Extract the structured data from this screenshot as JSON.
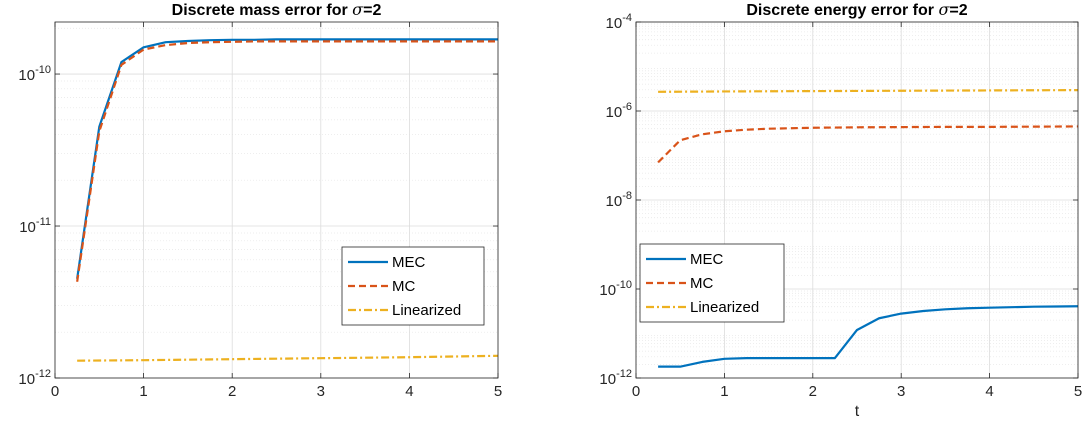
{
  "colors": {
    "MEC": "#0072BD",
    "MC": "#D95319",
    "Linearized": "#EDB120"
  },
  "chart_data": [
    {
      "type": "line",
      "title_prefix": "Discrete mass error for ",
      "title_symbol": "σ",
      "title_suffix": "=2",
      "xlabel": "",
      "ylabel": "",
      "yscale": "log",
      "xlim": [
        0,
        5
      ],
      "ylim": [
        1e-12,
        2.2e-10
      ],
      "grid": true,
      "minor_grid": true,
      "legend_position": "bottom-right",
      "xticks": [
        0,
        1,
        2,
        3,
        4,
        5
      ],
      "xtick_labels": [
        "0",
        "1",
        "2",
        "3",
        "4",
        "5"
      ],
      "yticks": [
        1e-12,
        1e-11,
        1e-10
      ],
      "ytick_labels": [
        {
          "base": "10",
          "exp": "-12"
        },
        {
          "base": "10",
          "exp": "-11"
        },
        {
          "base": "10",
          "exp": "-10"
        }
      ],
      "series": [
        {
          "name": "MEC",
          "color": "#0072BD",
          "dash": "solid",
          "x": [
            0.25,
            0.5,
            0.75,
            1.0,
            1.25,
            1.5,
            1.75,
            2.0,
            2.25,
            2.5,
            2.75,
            3.0,
            3.25,
            3.5,
            3.75,
            4.0,
            4.25,
            4.5,
            4.75,
            5.0
          ],
          "y": [
            4.5e-12,
            4.5e-11,
            1.2e-10,
            1.5e-10,
            1.62e-10,
            1.65e-10,
            1.67e-10,
            1.68e-10,
            1.68e-10,
            1.69e-10,
            1.69e-10,
            1.69e-10,
            1.69e-10,
            1.69e-10,
            1.69e-10,
            1.69e-10,
            1.69e-10,
            1.69e-10,
            1.69e-10,
            1.69e-10
          ]
        },
        {
          "name": "MC",
          "color": "#D95319",
          "dash": "dashed",
          "x": [
            0.25,
            0.5,
            0.75,
            1.0,
            1.25,
            1.5,
            1.75,
            2.0,
            2.25,
            2.5,
            2.75,
            3.0,
            3.25,
            3.5,
            3.75,
            4.0,
            4.25,
            4.5,
            4.75,
            5.0
          ],
          "y": [
            4.3e-12,
            4.2e-11,
            1.15e-10,
            1.45e-10,
            1.55e-10,
            1.6e-10,
            1.62e-10,
            1.63e-10,
            1.64e-10,
            1.64e-10,
            1.64e-10,
            1.64e-10,
            1.64e-10,
            1.64e-10,
            1.64e-10,
            1.64e-10,
            1.64e-10,
            1.64e-10,
            1.64e-10,
            1.64e-10
          ]
        },
        {
          "name": "Linearized",
          "color": "#EDB120",
          "dash": "dashdot",
          "x": [
            0.25,
            1.0,
            2.0,
            3.0,
            4.0,
            5.0
          ],
          "y": [
            1.3e-12,
            1.31e-12,
            1.33e-12,
            1.35e-12,
            1.37e-12,
            1.4e-12
          ]
        }
      ]
    },
    {
      "type": "line",
      "title_prefix": "Discrete energy error for ",
      "title_symbol": "σ",
      "title_suffix": "=2",
      "xlabel": "t",
      "ylabel": "",
      "yscale": "log",
      "xlim": [
        0,
        5
      ],
      "ylim": [
        1e-12,
        0.0001
      ],
      "grid": true,
      "minor_grid": true,
      "legend_position": "bottom-left",
      "xticks": [
        0,
        1,
        2,
        3,
        4,
        5
      ],
      "xtick_labels": [
        "0",
        "1",
        "2",
        "3",
        "4",
        "5"
      ],
      "yticks": [
        1e-12,
        1e-10,
        1e-08,
        1e-06,
        0.0001
      ],
      "ytick_labels": [
        {
          "base": "10",
          "exp": "-12"
        },
        {
          "base": "10",
          "exp": "-10"
        },
        {
          "base": "10",
          "exp": "-8"
        },
        {
          "base": "10",
          "exp": "-6"
        },
        {
          "base": "10",
          "exp": "-4"
        }
      ],
      "series": [
        {
          "name": "MEC",
          "color": "#0072BD",
          "dash": "solid",
          "x": [
            0.25,
            0.5,
            0.75,
            1.0,
            1.25,
            1.5,
            1.75,
            2.0,
            2.25,
            2.5,
            2.75,
            3.0,
            3.25,
            3.5,
            3.75,
            4.0,
            4.25,
            4.5,
            4.75,
            5.0
          ],
          "y": [
            1.8e-12,
            1.8e-12,
            2.3e-12,
            2.7e-12,
            2.8e-12,
            2.8e-12,
            2.8e-12,
            2.8e-12,
            2.8e-12,
            1.2e-11,
            2.2e-11,
            2.8e-11,
            3.2e-11,
            3.5e-11,
            3.7e-11,
            3.8e-11,
            3.9e-11,
            4e-11,
            4.05e-11,
            4.1e-11
          ]
        },
        {
          "name": "MC",
          "color": "#D95319",
          "dash": "dashed",
          "x": [
            0.25,
            0.5,
            0.75,
            1.0,
            1.25,
            1.5,
            1.75,
            2.0,
            2.5,
            3.0,
            3.5,
            4.0,
            4.5,
            5.0
          ],
          "y": [
            7e-08,
            2.2e-07,
            3e-07,
            3.5e-07,
            3.8e-07,
            4e-07,
            4.1e-07,
            4.2e-07,
            4.3e-07,
            4.35e-07,
            4.4e-07,
            4.4e-07,
            4.45e-07,
            4.5e-07
          ]
        },
        {
          "name": "Linearized",
          "color": "#EDB120",
          "dash": "dashdot",
          "x": [
            0.25,
            1.0,
            2.0,
            3.0,
            4.0,
            5.0
          ],
          "y": [
            2.7e-06,
            2.75e-06,
            2.8e-06,
            2.85e-06,
            2.9e-06,
            2.95e-06
          ]
        }
      ]
    }
  ]
}
